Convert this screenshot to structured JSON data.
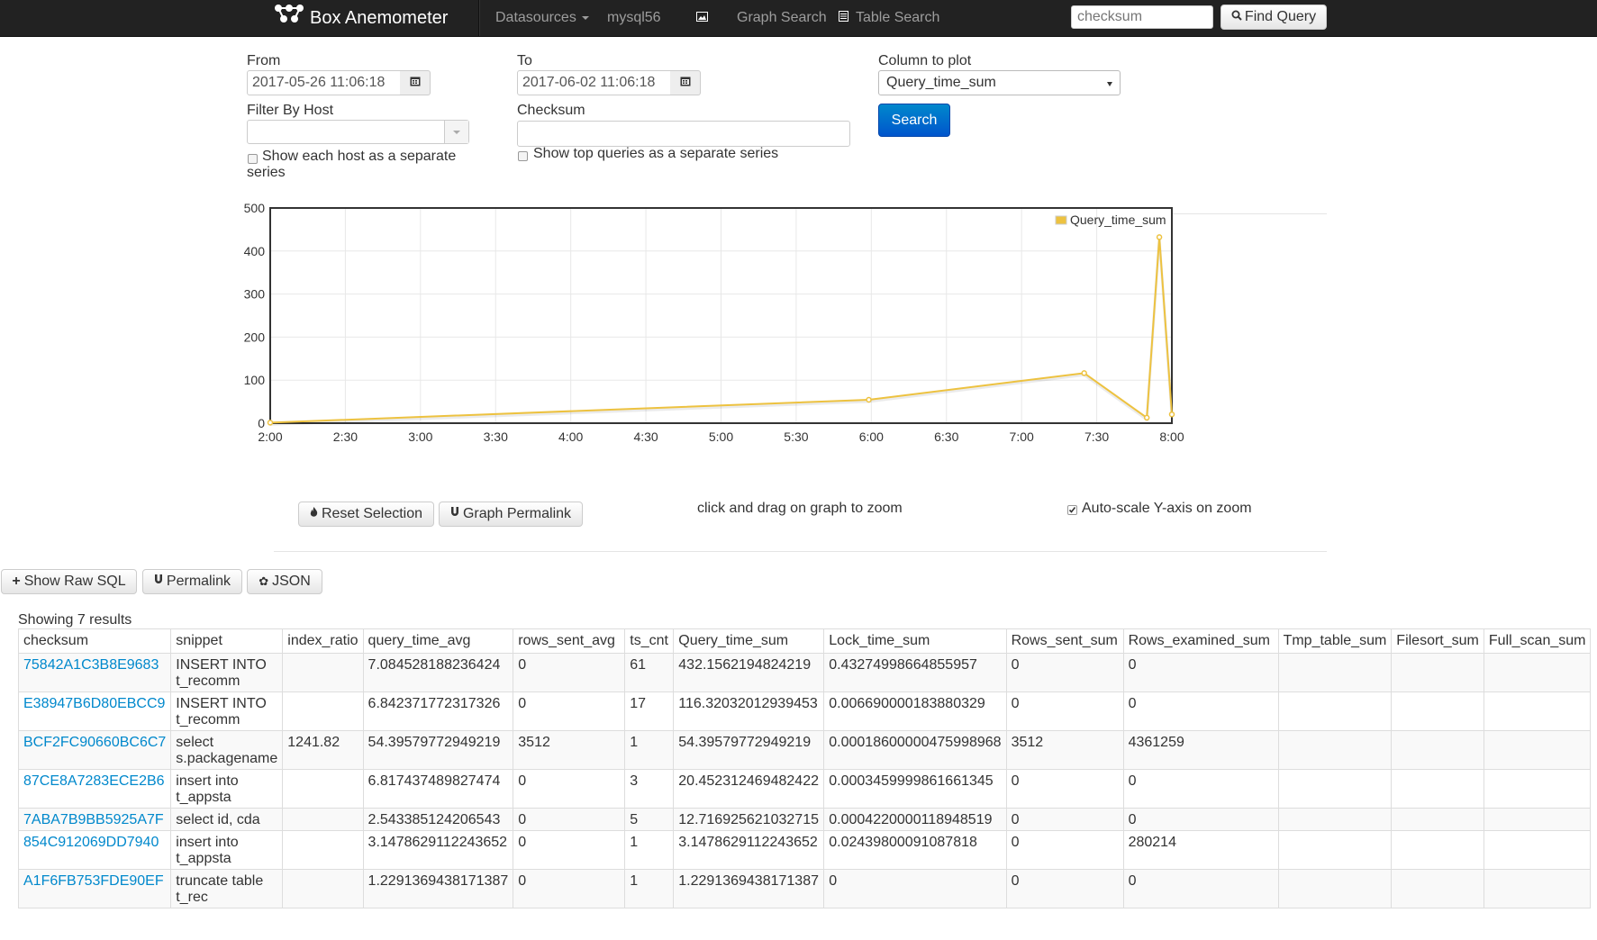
{
  "navbar": {
    "brand": "Box Anemometer",
    "datasources": "Datasources",
    "datasource_current": "mysql56",
    "graph_search": "Graph Search",
    "table_search": "Table Search",
    "checksum_placeholder": "checksum",
    "find_query": "Find Query"
  },
  "form": {
    "from_label": "From",
    "from_value": "2017-05-26 11:06:18",
    "to_label": "To",
    "to_value": "2017-06-02 11:06:18",
    "column_label": "Column to plot",
    "column_value": "Query_time_sum",
    "filter_host_label": "Filter By Host",
    "checksum_label": "Checksum",
    "show_each_host": "Show each host as a separate series",
    "show_each_host_line1": "Show each host as a separate",
    "show_each_host_line2": "series",
    "show_top_queries": "Show top queries as a separate series",
    "search_button": "Search"
  },
  "chart_controls": {
    "reset_selection": "Reset Selection",
    "graph_permalink": "Graph Permalink",
    "zoom_hint": "click and drag on graph to zoom",
    "auto_scale": "Auto-scale Y-axis on zoom"
  },
  "chart_data": {
    "type": "line",
    "series": [
      {
        "name": "Query_time_sum",
        "color": "#edc240",
        "points": [
          {
            "x": "2:00",
            "y": 1.23
          },
          {
            "x": "5:59",
            "y": 54.4
          },
          {
            "x": "7:25",
            "y": 116.3
          },
          {
            "x": "7:50",
            "y": 12.7
          },
          {
            "x": "7:55",
            "y": 432.2
          },
          {
            "x": "8:00",
            "y": 20.5
          }
        ]
      }
    ],
    "x_ticks": [
      "2:00",
      "2:30",
      "3:00",
      "3:30",
      "4:00",
      "4:30",
      "5:00",
      "5:30",
      "6:00",
      "6:30",
      "7:00",
      "7:30",
      "8:00"
    ],
    "xlim": [
      "2:00",
      "8:00"
    ],
    "y_ticks": [
      0,
      100,
      200,
      300,
      400,
      500
    ],
    "ylim": [
      0,
      500
    ],
    "grid": true,
    "legend_position": "top-right"
  },
  "actions": {
    "show_raw_sql": "Show Raw SQL",
    "permalink": "Permalink",
    "json": "JSON"
  },
  "results": {
    "summary": "Showing 7 results",
    "columns": [
      "checksum",
      "snippet",
      "index_ratio",
      "query_time_avg",
      "rows_sent_avg",
      "ts_cnt",
      "Query_time_sum",
      "Lock_time_sum",
      "Rows_sent_sum",
      "Rows_examined_sum",
      "Tmp_table_sum",
      "Filesort_sum",
      "Full_scan_sum"
    ],
    "rows": [
      {
        "checksum": "75842A1C3B8E9683",
        "snippet1": "INSERT INTO",
        "snippet2": "t_recomm",
        "index_ratio": "",
        "query_time_avg": "7.084528188236424",
        "rows_sent_avg": "0",
        "ts_cnt": "61",
        "Query_time_sum": "432.1562194824219",
        "Lock_time_sum": "0.43274998664855957",
        "Rows_sent_sum": "0",
        "Rows_examined_sum": "0",
        "Tmp_table_sum": "",
        "Filesort_sum": "",
        "Full_scan_sum": ""
      },
      {
        "checksum": "E38947B6D80EBCC9",
        "snippet1": "INSERT INTO",
        "snippet2": "t_recomm",
        "index_ratio": "",
        "query_time_avg": "6.842371772317326",
        "rows_sent_avg": "0",
        "ts_cnt": "17",
        "Query_time_sum": "116.32032012939453",
        "Lock_time_sum": "0.006690000183880329",
        "Rows_sent_sum": "0",
        "Rows_examined_sum": "0",
        "Tmp_table_sum": "",
        "Filesort_sum": "",
        "Full_scan_sum": ""
      },
      {
        "checksum": "BCF2FC90660BC6C7",
        "snippet1": "select",
        "snippet2": "s.packagename",
        "index_ratio": "1241.82",
        "query_time_avg": "54.39579772949219",
        "rows_sent_avg": "3512",
        "ts_cnt": "1",
        "Query_time_sum": "54.39579772949219",
        "Lock_time_sum": "0.00018600000475998968",
        "Rows_sent_sum": "3512",
        "Rows_examined_sum": "4361259",
        "Tmp_table_sum": "",
        "Filesort_sum": "",
        "Full_scan_sum": ""
      },
      {
        "checksum": "87CE8A7283ECE2B6",
        "snippet1": "insert into",
        "snippet2": "t_appsta",
        "index_ratio": "",
        "query_time_avg": "6.817437489827474",
        "rows_sent_avg": "0",
        "ts_cnt": "3",
        "Query_time_sum": "20.452312469482422",
        "Lock_time_sum": "0.0003459999861661345",
        "Rows_sent_sum": "0",
        "Rows_examined_sum": "0",
        "Tmp_table_sum": "",
        "Filesort_sum": "",
        "Full_scan_sum": ""
      },
      {
        "checksum": "7ABA7B9BB5925A7F",
        "snippet1": "select id, cda",
        "snippet2": "",
        "index_ratio": "",
        "query_time_avg": "2.543385124206543",
        "rows_sent_avg": "0",
        "ts_cnt": "5",
        "Query_time_sum": "12.716925621032715",
        "Lock_time_sum": "0.0004220000118948519",
        "Rows_sent_sum": "0",
        "Rows_examined_sum": "0",
        "Tmp_table_sum": "",
        "Filesort_sum": "",
        "Full_scan_sum": ""
      },
      {
        "checksum": "854C912069DD7940",
        "snippet1": "insert into",
        "snippet2": "t_appsta",
        "index_ratio": "",
        "query_time_avg": "3.1478629112243652",
        "rows_sent_avg": "0",
        "ts_cnt": "1",
        "Query_time_sum": "3.1478629112243652",
        "Lock_time_sum": "0.02439800091087818",
        "Rows_sent_sum": "0",
        "Rows_examined_sum": "280214",
        "Tmp_table_sum": "",
        "Filesort_sum": "",
        "Full_scan_sum": ""
      },
      {
        "checksum": "A1F6FB753FDE90EF",
        "snippet1": "truncate table",
        "snippet2": "t_rec",
        "index_ratio": "",
        "query_time_avg": "1.2291369438171387",
        "rows_sent_avg": "0",
        "ts_cnt": "1",
        "Query_time_sum": "1.2291369438171387",
        "Lock_time_sum": "0",
        "Rows_sent_sum": "0",
        "Rows_examined_sum": "0",
        "Tmp_table_sum": "",
        "Filesort_sum": "",
        "Full_scan_sum": ""
      }
    ]
  }
}
